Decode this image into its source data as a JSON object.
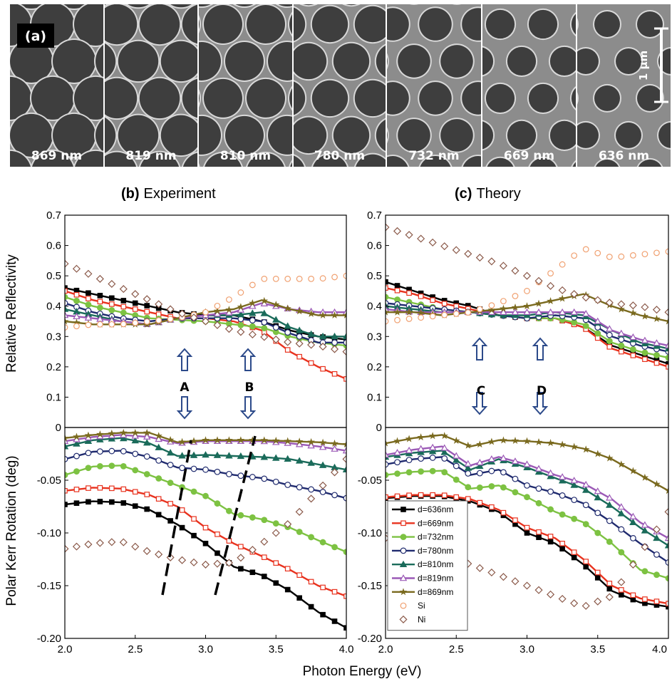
{
  "sem": {
    "tag": "(a)",
    "scale_bar": "1 µm",
    "tiles": [
      {
        "label": "869 nm",
        "gap": 0.0
      },
      {
        "label": "819 nm",
        "gap": 0.06
      },
      {
        "label": "810 nm",
        "gap": 0.1
      },
      {
        "label": "780 nm",
        "gap": 0.16
      },
      {
        "label": "732 nm",
        "gap": 0.24
      },
      {
        "label": "669 nm",
        "gap": 0.33
      },
      {
        "label": "636 nm",
        "gap": 0.4
      }
    ]
  },
  "panels": {
    "b": {
      "title_bold": "(b)",
      "title": "Experiment"
    },
    "c": {
      "title_bold": "(c)",
      "title": "Theory"
    }
  },
  "axes": {
    "xlabel": "Photon Energy (eV)",
    "ylabel_top": "Relative Reflectivity",
    "ylabel_bottom": "Polar Kerr Rotation (deg)",
    "x_ticks": [
      "2.0",
      "2.5",
      "3.0",
      "3.5",
      "4.0"
    ],
    "y_ticks_top": [
      "0",
      "0.1",
      "0.2",
      "0.3",
      "0.4",
      "0.5",
      "0.6",
      "0.7"
    ],
    "y_ticks_bottom": [
      "-0.20",
      "-0.15",
      "-0.10",
      "-0.05",
      "0"
    ]
  },
  "annotations": {
    "A": "A",
    "B": "B",
    "C": "C",
    "D": "D"
  },
  "legend": [
    {
      "label": "d=636nm",
      "color": "#000000",
      "marker": "square-filled"
    },
    {
      "label": "d=669nm",
      "color": "#e8321e",
      "marker": "square-open"
    },
    {
      "label": "d=732nm",
      "color": "#7dc242",
      "marker": "circle-filled"
    },
    {
      "label": "d=780nm",
      "color": "#1f2a6e",
      "marker": "circle-open"
    },
    {
      "label": "d=810nm",
      "color": "#1a6b5a",
      "marker": "triangle-filled"
    },
    {
      "label": "d=819nm",
      "color": "#9b59b6",
      "marker": "triangle-open"
    },
    {
      "label": "d=869nm",
      "color": "#7a6a1f",
      "marker": "star"
    },
    {
      "label": "Si",
      "color": "#f0a070",
      "marker": "circle-open"
    },
    {
      "label": "Ni",
      "color": "#8b5a4a",
      "marker": "diamond-open"
    }
  ],
  "chart_data": [
    {
      "type": "line",
      "panel": "b-reflectivity",
      "xlabel": "Photon Energy (eV)",
      "ylabel": "Relative Reflectivity",
      "xlim": [
        2.0,
        4.0
      ],
      "ylim": [
        0,
        0.7
      ],
      "x": [
        2.0,
        2.2,
        2.4,
        2.6,
        2.8,
        3.0,
        3.2,
        3.4,
        3.6,
        3.8,
        4.0
      ],
      "series": [
        {
          "name": "d=636nm",
          "values": [
            0.46,
            0.44,
            0.42,
            0.4,
            0.38,
            0.37,
            0.37,
            0.35,
            0.32,
            0.3,
            0.29
          ]
        },
        {
          "name": "d=669nm",
          "values": [
            0.45,
            0.42,
            0.4,
            0.38,
            0.36,
            0.36,
            0.35,
            0.32,
            0.25,
            0.2,
            0.16
          ]
        },
        {
          "name": "d=732nm",
          "values": [
            0.43,
            0.4,
            0.38,
            0.36,
            0.355,
            0.35,
            0.34,
            0.33,
            0.3,
            0.28,
            0.27
          ]
        },
        {
          "name": "d=780nm",
          "values": [
            0.41,
            0.38,
            0.36,
            0.35,
            0.36,
            0.36,
            0.36,
            0.35,
            0.31,
            0.28,
            0.28
          ]
        },
        {
          "name": "d=810nm",
          "values": [
            0.39,
            0.37,
            0.35,
            0.34,
            0.36,
            0.37,
            0.37,
            0.38,
            0.33,
            0.3,
            0.3
          ]
        },
        {
          "name": "d=819nm",
          "values": [
            0.37,
            0.36,
            0.35,
            0.34,
            0.36,
            0.37,
            0.38,
            0.41,
            0.39,
            0.38,
            0.38
          ]
        },
        {
          "name": "d=869nm",
          "values": [
            0.35,
            0.34,
            0.34,
            0.34,
            0.36,
            0.38,
            0.39,
            0.42,
            0.39,
            0.37,
            0.37
          ]
        },
        {
          "name": "Si",
          "values": [
            0.33,
            0.34,
            0.34,
            0.35,
            0.36,
            0.38,
            0.43,
            0.49,
            0.49,
            0.49,
            0.5
          ]
        },
        {
          "name": "Ni",
          "values": [
            0.54,
            0.5,
            0.46,
            0.42,
            0.38,
            0.35,
            0.32,
            0.3,
            0.28,
            0.27,
            0.25
          ]
        }
      ]
    },
    {
      "type": "line",
      "panel": "b-kerr",
      "xlabel": "Photon Energy (eV)",
      "ylabel": "Polar Kerr Rotation (deg)",
      "xlim": [
        2.0,
        4.0
      ],
      "ylim": [
        -0.2,
        0
      ],
      "x": [
        2.0,
        2.2,
        2.4,
        2.6,
        2.8,
        3.0,
        3.2,
        3.4,
        3.6,
        3.8,
        4.0
      ],
      "series": [
        {
          "name": "d=636nm",
          "values": [
            -0.073,
            -0.07,
            -0.071,
            -0.078,
            -0.092,
            -0.11,
            -0.132,
            -0.14,
            -0.155,
            -0.175,
            -0.19
          ]
        },
        {
          "name": "d=669nm",
          "values": [
            -0.06,
            -0.057,
            -0.058,
            -0.064,
            -0.075,
            -0.095,
            -0.11,
            -0.122,
            -0.135,
            -0.15,
            -0.16
          ]
        },
        {
          "name": "d=732nm",
          "values": [
            -0.045,
            -0.037,
            -0.036,
            -0.045,
            -0.055,
            -0.065,
            -0.082,
            -0.087,
            -0.095,
            -0.107,
            -0.118
          ]
        },
        {
          "name": "d=780nm",
          "values": [
            -0.03,
            -0.023,
            -0.022,
            -0.028,
            -0.038,
            -0.04,
            -0.045,
            -0.048,
            -0.055,
            -0.06,
            -0.067
          ]
        },
        {
          "name": "d=810nm",
          "values": [
            -0.018,
            -0.012,
            -0.01,
            -0.015,
            -0.027,
            -0.026,
            -0.027,
            -0.028,
            -0.03,
            -0.035,
            -0.04
          ]
        },
        {
          "name": "d=819nm",
          "values": [
            -0.013,
            -0.009,
            -0.007,
            -0.009,
            -0.015,
            -0.013,
            -0.013,
            -0.013,
            -0.015,
            -0.018,
            -0.022
          ]
        },
        {
          "name": "d=869nm",
          "values": [
            -0.01,
            -0.007,
            -0.005,
            -0.005,
            -0.014,
            -0.012,
            -0.012,
            -0.012,
            -0.013,
            -0.014,
            -0.016
          ]
        },
        {
          "name": "Ni",
          "values": [
            -0.115,
            -0.11,
            -0.108,
            -0.118,
            -0.125,
            -0.13,
            -0.128,
            -0.11,
            -0.09,
            -0.06,
            -0.03
          ]
        }
      ]
    },
    {
      "type": "line",
      "panel": "c-reflectivity",
      "xlabel": "Photon Energy (eV)",
      "ylabel": "Relative Reflectivity",
      "xlim": [
        2.0,
        4.0
      ],
      "ylim": [
        0,
        0.7
      ],
      "x": [
        2.0,
        2.2,
        2.4,
        2.6,
        2.8,
        3.0,
        3.2,
        3.4,
        3.6,
        3.8,
        4.0
      ],
      "series": [
        {
          "name": "d=636nm",
          "values": [
            0.48,
            0.45,
            0.42,
            0.4,
            0.37,
            0.36,
            0.36,
            0.33,
            0.27,
            0.24,
            0.21
          ]
        },
        {
          "name": "d=669nm",
          "values": [
            0.46,
            0.44,
            0.41,
            0.39,
            0.37,
            0.36,
            0.36,
            0.33,
            0.26,
            0.23,
            0.2
          ]
        },
        {
          "name": "d=732nm",
          "values": [
            0.43,
            0.41,
            0.39,
            0.38,
            0.37,
            0.36,
            0.36,
            0.34,
            0.28,
            0.25,
            0.23
          ]
        },
        {
          "name": "d=780nm",
          "values": [
            0.41,
            0.4,
            0.39,
            0.38,
            0.37,
            0.36,
            0.37,
            0.36,
            0.3,
            0.27,
            0.25
          ]
        },
        {
          "name": "d=810nm",
          "values": [
            0.4,
            0.39,
            0.38,
            0.38,
            0.37,
            0.37,
            0.38,
            0.37,
            0.32,
            0.28,
            0.26
          ]
        },
        {
          "name": "d=819nm",
          "values": [
            0.39,
            0.38,
            0.38,
            0.38,
            0.38,
            0.38,
            0.38,
            0.38,
            0.32,
            0.29,
            0.27
          ]
        },
        {
          "name": "d=869nm",
          "values": [
            0.38,
            0.38,
            0.37,
            0.38,
            0.39,
            0.4,
            0.42,
            0.44,
            0.4,
            0.37,
            0.35
          ]
        },
        {
          "name": "Si",
          "values": [
            0.35,
            0.36,
            0.37,
            0.38,
            0.41,
            0.45,
            0.52,
            0.59,
            0.56,
            0.57,
            0.58
          ]
        },
        {
          "name": "Ni",
          "values": [
            0.66,
            0.63,
            0.6,
            0.57,
            0.54,
            0.5,
            0.46,
            0.43,
            0.41,
            0.4,
            0.38
          ]
        }
      ]
    },
    {
      "type": "line",
      "panel": "c-kerr",
      "xlabel": "Photon Energy (eV)",
      "ylabel": "Polar Kerr Rotation (deg)",
      "xlim": [
        2.0,
        4.0
      ],
      "ylim": [
        -0.2,
        0
      ],
      "x": [
        2.0,
        2.2,
        2.4,
        2.6,
        2.8,
        3.0,
        3.2,
        3.4,
        3.6,
        3.8,
        4.0
      ],
      "series": [
        {
          "name": "d=636nm",
          "values": [
            -0.067,
            -0.065,
            -0.065,
            -0.07,
            -0.08,
            -0.1,
            -0.11,
            -0.13,
            -0.155,
            -0.166,
            -0.17
          ]
        },
        {
          "name": "d=669nm",
          "values": [
            -0.066,
            -0.064,
            -0.064,
            -0.068,
            -0.078,
            -0.095,
            -0.105,
            -0.125,
            -0.15,
            -0.162,
            -0.167
          ]
        },
        {
          "name": "d=732nm",
          "values": [
            -0.045,
            -0.042,
            -0.041,
            -0.058,
            -0.055,
            -0.066,
            -0.08,
            -0.09,
            -0.11,
            -0.135,
            -0.143
          ]
        },
        {
          "name": "d=780nm",
          "values": [
            -0.035,
            -0.03,
            -0.028,
            -0.045,
            -0.04,
            -0.055,
            -0.062,
            -0.072,
            -0.09,
            -0.11,
            -0.128
          ]
        },
        {
          "name": "d=810nm",
          "values": [
            -0.028,
            -0.024,
            -0.022,
            -0.04,
            -0.03,
            -0.038,
            -0.048,
            -0.058,
            -0.075,
            -0.095,
            -0.112
          ]
        },
        {
          "name": "d=819nm",
          "values": [
            -0.026,
            -0.021,
            -0.018,
            -0.036,
            -0.028,
            -0.035,
            -0.045,
            -0.053,
            -0.068,
            -0.09,
            -0.105
          ]
        },
        {
          "name": "d=869nm",
          "values": [
            -0.015,
            -0.01,
            -0.007,
            -0.018,
            -0.012,
            -0.013,
            -0.015,
            -0.02,
            -0.03,
            -0.045,
            -0.06
          ]
        },
        {
          "name": "Ni",
          "values": [
            -0.105,
            -0.112,
            -0.12,
            -0.13,
            -0.14,
            -0.15,
            -0.16,
            -0.17,
            -0.16,
            -0.12,
            -0.08
          ]
        }
      ]
    }
  ]
}
